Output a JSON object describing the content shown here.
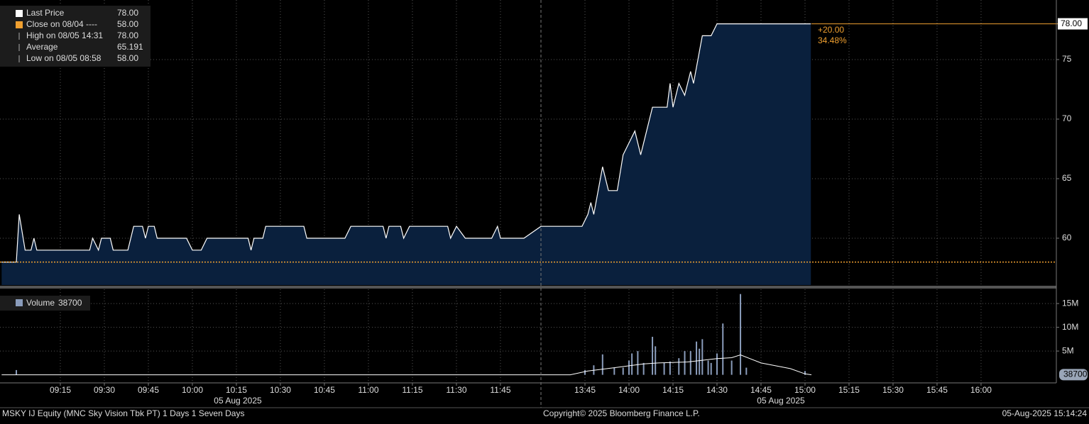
{
  "chart_data": [
    {
      "type": "line",
      "x": [
        "08:55",
        "09:00",
        "09:01",
        "09:03",
        "09:05",
        "09:06",
        "09:07",
        "09:25",
        "09:26",
        "09:28",
        "09:29",
        "09:32",
        "09:33",
        "09:38",
        "09:40",
        "09:43",
        "09:44",
        "09:45",
        "09:47",
        "09:48",
        "09:58",
        "10:00",
        "10:03",
        "10:05",
        "10:19",
        "10:20",
        "10:21",
        "10:24",
        "10:25",
        "10:38",
        "10:39",
        "10:52",
        "10:54",
        "11:05",
        "11:06",
        "11:07",
        "11:11",
        "11:12",
        "11:14",
        "11:27",
        "11:28",
        "11:30",
        "11:33",
        "11:42",
        "11:44",
        "11:45",
        "11:53",
        "13:30",
        "13:44",
        "13:46",
        "13:47",
        "13:48",
        "13:51",
        "13:53",
        "13:56",
        "13:58",
        "14:00",
        "14:02",
        "14:04",
        "14:06",
        "14:08",
        "14:13",
        "14:14",
        "14:15",
        "14:17",
        "14:19",
        "14:21",
        "14:22",
        "14:25",
        "14:28",
        "14:30",
        "15:02"
      ],
      "series": [
        {
          "name": "Last Price",
          "color": "#ffffff",
          "fill": "#0a203d",
          "values": [
            58,
            58,
            62,
            59,
            59,
            60,
            59,
            59,
            60,
            59,
            60,
            60,
            59,
            59,
            61,
            61,
            60,
            61,
            61,
            60,
            60,
            59,
            59,
            60,
            60,
            59,
            60,
            60,
            61,
            61,
            60,
            60,
            61,
            61,
            60,
            61,
            61,
            60,
            61,
            61,
            60,
            61,
            60,
            60,
            61,
            60,
            60,
            61,
            61,
            62,
            63,
            62,
            66,
            64,
            64,
            67,
            68,
            69,
            67,
            69,
            71,
            71,
            73,
            71,
            73,
            72,
            74,
            73,
            77,
            77,
            78,
            78
          ]
        }
      ],
      "ylim": [
        56.07,
        80.0
      ],
      "yticks": [
        60,
        65,
        70,
        75
      ],
      "grid": true,
      "reference_line": {
        "value": 58,
        "color": "#f0a030"
      },
      "last_tag": {
        "value": 78,
        "label": "78.00"
      },
      "annotations": [
        "+20.00",
        "34.48%"
      ],
      "legend": [
        {
          "name": "Last Price",
          "value": 78,
          "label": "78.00",
          "color": "#ffffff"
        },
        {
          "name": "Close on 08/04 ----",
          "value": 58,
          "label": "58.00",
          "color": "#f0a030"
        },
        {
          "name": "High on 08/05 14:31",
          "value": 78,
          "label": "78.00"
        },
        {
          "name": "Average",
          "value": 65.191,
          "label": "65.191"
        },
        {
          "name": "Low on 08/05 08:58",
          "value": 58,
          "label": "58.00"
        }
      ]
    },
    {
      "type": "bar",
      "x": [
        "09:00",
        "13:45",
        "13:48",
        "13:51",
        "13:55",
        "13:58",
        "14:00",
        "14:01",
        "14:03",
        "14:05",
        "14:08",
        "14:09",
        "14:12",
        "14:14",
        "14:17",
        "14:19",
        "14:21",
        "14:23",
        "14:24",
        "14:25",
        "14:27",
        "14:28",
        "14:30",
        "14:32",
        "14:35",
        "14:38",
        "14:40",
        "15:00"
      ],
      "series": [
        {
          "name": "Volume",
          "color": "#8a9cbb",
          "values": [
            1000000,
            1000000,
            2000000,
            4300000,
            1500000,
            1500000,
            3000000,
            4500000,
            5000000,
            2500000,
            8000000,
            6000000,
            2500000,
            2800000,
            3500000,
            5000000,
            5000000,
            7000000,
            5500000,
            7500000,
            3000000,
            2500000,
            4500000,
            10800000,
            3000000,
            17000000,
            1500000,
            800000
          ]
        }
      ],
      "line": {
        "color": "#ffffff",
        "x": [
          "08:55",
          "13:40",
          "13:46",
          "13:55",
          "14:05",
          "14:10",
          "14:20",
          "14:30",
          "14:35",
          "14:38",
          "14:45",
          "14:55",
          "15:00"
        ],
        "values": [
          0,
          0,
          800000,
          1500000,
          2300000,
          2500000,
          2700000,
          3400000,
          3600000,
          4200000,
          2500000,
          1300000,
          200000
        ]
      },
      "ylim": [
        -1400000,
        18000000
      ],
      "yticks": [
        {
          "value": 5000000,
          "label": "5M"
        },
        {
          "value": 10000000,
          "label": "10M"
        },
        {
          "value": 15000000,
          "label": "15M"
        }
      ],
      "grid": true,
      "legend": {
        "name": "Volume",
        "value": 38700
      },
      "last_tag": 38700,
      "xticks": [
        "09:15",
        "09:30",
        "09:45",
        "10:00",
        "10:15",
        "10:30",
        "10:45",
        "11:00",
        "11:15",
        "11:30",
        "11:45",
        "13:45",
        "14:00",
        "14:15",
        "14:30",
        "14:45",
        "15:00",
        "15:15",
        "15:30",
        "15:45",
        "16:00"
      ],
      "date_labels": [
        "05 Aug 2025",
        "05 Aug 2025"
      ]
    }
  ],
  "footer": {
    "left": "MSKY IJ Equity (MNC Sky Vision Tbk PT) 1 Days 1 Seven Days",
    "center": "Copyright© 2025 Bloomberg Finance L.P.",
    "right": "05-Aug-2025 15:14:24"
  }
}
